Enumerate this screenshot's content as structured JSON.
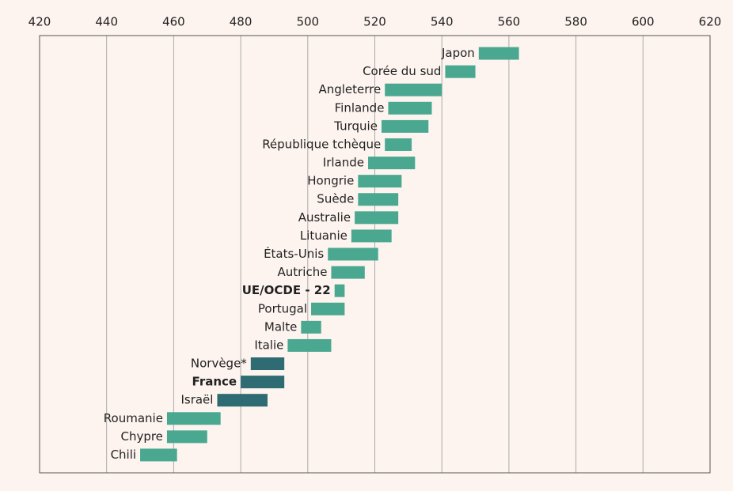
{
  "chart_data": {
    "type": "range_bar",
    "categories": [
      "Japon",
      "Corée du sud",
      "Angleterre",
      "Finlande",
      "Turquie",
      "République tchèque",
      "Irlande",
      "Hongrie",
      "Suède",
      "Australie",
      "Lituanie",
      "États-Unis",
      "Autriche",
      "UE/OCDE - 22",
      "Portugal",
      "Malte",
      "Italie",
      "Norvège*",
      "France",
      "Israël",
      "Roumanie",
      "Chypre",
      "Chili"
    ],
    "low": [
      551,
      541,
      523,
      524,
      522,
      523,
      518,
      515,
      515,
      514,
      513,
      506,
      507,
      508,
      501,
      498,
      494,
      483,
      480,
      473,
      458,
      458,
      450
    ],
    "high": [
      563,
      550,
      540,
      537,
      536,
      531,
      532,
      528,
      527,
      527,
      525,
      521,
      517,
      511,
      511,
      504,
      507,
      493,
      493,
      488,
      474,
      470,
      461
    ],
    "bar_colors": [
      "#4aa891",
      "#4aa891",
      "#4aa891",
      "#4aa891",
      "#4aa891",
      "#4aa891",
      "#4aa891",
      "#4aa891",
      "#4aa891",
      "#4aa891",
      "#4aa891",
      "#4aa891",
      "#4aa891",
      "#4aa891",
      "#4aa891",
      "#4aa891",
      "#4aa891",
      "#2f6b72",
      "#2f6b72",
      "#2f6b72",
      "#4aa891",
      "#4aa891",
      "#4aa891"
    ],
    "bold": [
      false,
      false,
      false,
      false,
      false,
      false,
      false,
      false,
      false,
      false,
      false,
      false,
      false,
      true,
      false,
      false,
      false,
      false,
      true,
      false,
      false,
      false,
      false
    ],
    "xlim": [
      420,
      620
    ],
    "xticks": [
      420,
      440,
      460,
      480,
      500,
      520,
      540,
      560,
      580,
      600,
      620
    ],
    "grid": true
  }
}
